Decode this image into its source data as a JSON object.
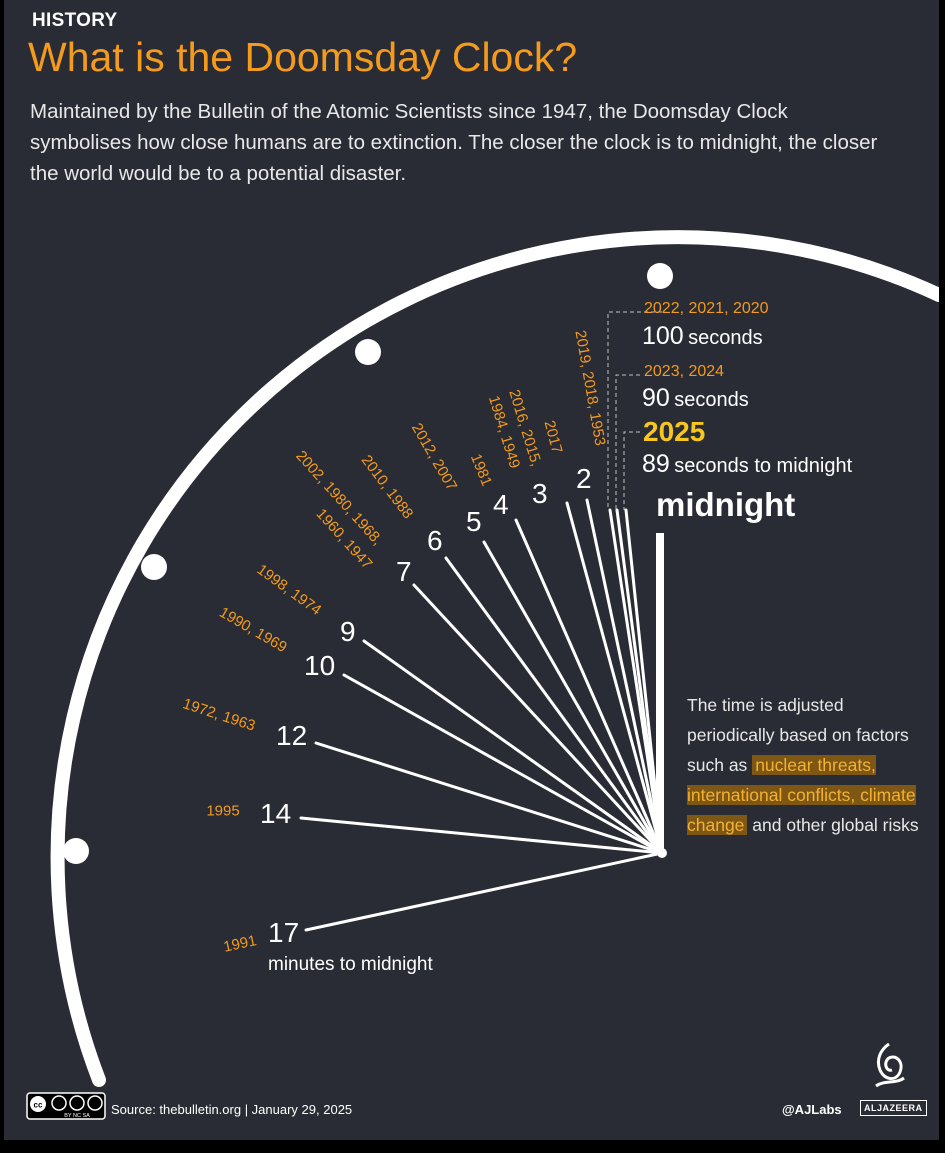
{
  "header": {
    "section": "HISTORY",
    "title": "What is the Doomsday Clock?",
    "intro": "Maintained by the Bulletin of the Atomic Scientists since 1947, the Doomsday Clock symbolises how close humans are to extinction. The closer the clock is to midnight, the closer the world would be to a potential disaster."
  },
  "colors": {
    "background": "#292c34",
    "accent": "#f49a1d",
    "highlight_2025": "#f7c61f",
    "text": "#ffffff"
  },
  "minute_settings": [
    {
      "minutes": "2",
      "years": "2019, 2018, 1953"
    },
    {
      "minutes": "3",
      "years": "2017"
    },
    {
      "minutes": "4",
      "years": "2016, 2015, 1984, 1949"
    },
    {
      "minutes": "5",
      "years": "1981"
    },
    {
      "minutes": "6",
      "years": "2012, 2007"
    },
    {
      "minutes": "7",
      "years": "2010, 1988"
    },
    {
      "minutes": "7",
      "years": "2002, 1980, 1968, 1960, 1947"
    },
    {
      "minutes": "9",
      "years": "1998, 1974"
    },
    {
      "minutes": "10",
      "years": "1990, 1969"
    },
    {
      "minutes": "12",
      "years": "1972, 1963"
    },
    {
      "minutes": "14",
      "years": "1995"
    },
    {
      "minutes": "17",
      "years": "1991",
      "unit": "minutes to midnight"
    }
  ],
  "second_settings": [
    {
      "years": "2022, 2021, 2020",
      "value": "100",
      "unit": "seconds"
    },
    {
      "years": "2023, 2024",
      "value": "90",
      "unit": "seconds"
    },
    {
      "years": "2025",
      "value": "89",
      "unit": "seconds to midnight"
    }
  ],
  "midnight_label": "midnight",
  "note": {
    "before": "The time is adjusted periodically based on factors such as",
    "highlight": "nuclear threats, international conflicts, climate change",
    "after": "and other global risks"
  },
  "footer": {
    "cc_license": "BY NC SA",
    "source": "Source: thebulletin.org  |  January 29, 2025",
    "credit": "@AJLabs",
    "brand": "ALJAZEERA"
  }
}
